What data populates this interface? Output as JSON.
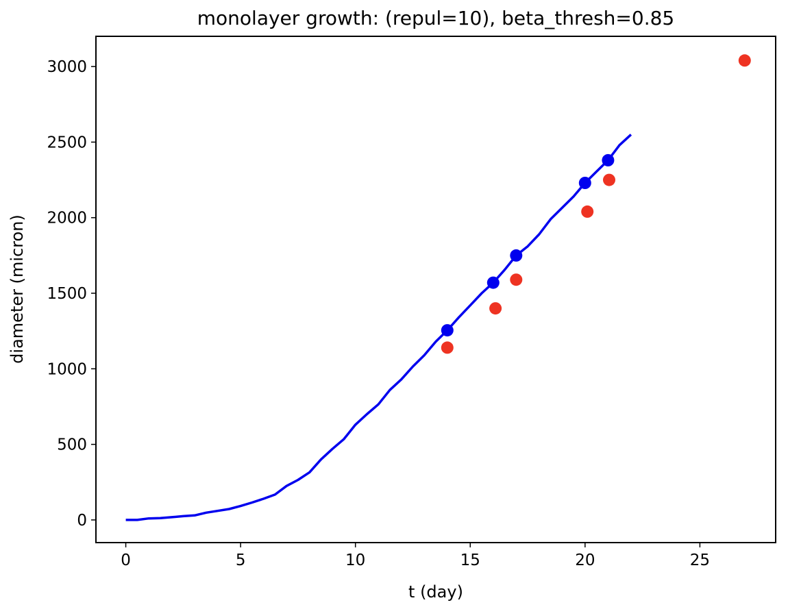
{
  "chart_data": {
    "type": "line",
    "title": "monolayer growth: (repul=10), beta_thresh=0.85",
    "xlabel": "t (day)",
    "ylabel": "diameter (micron)",
    "xlim": [
      -1.3,
      28.3
    ],
    "ylim": [
      -150,
      3200
    ],
    "x_ticks": [
      0,
      5,
      10,
      15,
      20,
      25
    ],
    "y_ticks": [
      0,
      500,
      1000,
      1500,
      2000,
      2500,
      3000
    ],
    "grid": false,
    "series": [
      {
        "kind": "line",
        "color": "#0000ee",
        "x": [
          0,
          0.5,
          1,
          1.5,
          2,
          2.5,
          3,
          3.5,
          4,
          4.5,
          5,
          5.5,
          6,
          6.5,
          7,
          7.5,
          8,
          8.5,
          9,
          9.5,
          10,
          10.5,
          11,
          11.5,
          12,
          12.5,
          13,
          13.5,
          14,
          14.5,
          15,
          15.5,
          16,
          16.5,
          17,
          17.5,
          18,
          18.5,
          19,
          19.5,
          20,
          20.5,
          21,
          21.5,
          22
        ],
        "y": [
          0,
          0,
          10,
          12,
          18,
          25,
          30,
          48,
          60,
          72,
          92,
          115,
          140,
          168,
          225,
          265,
          315,
          400,
          470,
          535,
          630,
          700,
          765,
          860,
          930,
          1015,
          1090,
          1180,
          1255,
          1340,
          1420,
          1500,
          1570,
          1655,
          1750,
          1810,
          1890,
          1990,
          2065,
          2140,
          2230,
          2305,
          2380,
          2480,
          2550
        ]
      },
      {
        "kind": "scatter",
        "color": "#0000ee",
        "x": [
          14,
          16,
          17,
          20,
          21
        ],
        "y": [
          1255,
          1570,
          1750,
          2230,
          2380
        ]
      },
      {
        "kind": "scatter",
        "color": "#ee3322",
        "x": [
          14,
          16.1,
          17,
          20.1,
          21.05,
          26.95
        ],
        "y": [
          1140,
          1400,
          1590,
          2040,
          2250,
          3040
        ]
      }
    ]
  }
}
